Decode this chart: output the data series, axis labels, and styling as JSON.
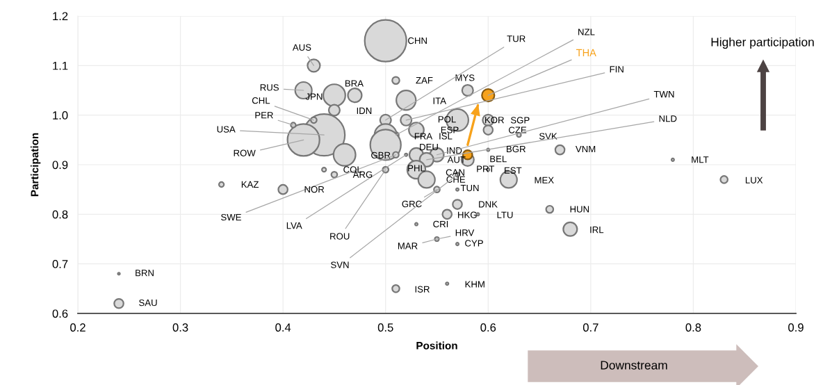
{
  "chart_data": {
    "type": "bubble",
    "xlabel": "Position",
    "ylabel": "Participation",
    "xlim": [
      0.2,
      0.9
    ],
    "xticks": [
      0.2,
      0.3,
      0.4,
      0.5,
      0.6,
      0.7,
      0.8,
      0.9
    ],
    "ylim": [
      0.6,
      1.2
    ],
    "yticks": [
      0.6,
      0.7,
      0.8,
      0.9,
      {
        "value": 1.0,
        "label": "1.0"
      },
      1.1,
      1.2
    ],
    "grid": true,
    "series": [
      {
        "x": [
          0.5,
          0.43,
          0.42,
          0.45,
          0.47,
          0.45,
          0.51,
          0.52,
          0.58,
          0.6,
          0.5,
          0.51,
          0.57,
          0.52,
          0.6,
          0.6,
          0.63,
          0.53,
          0.44,
          0.42,
          0.43,
          0.41,
          0.5,
          0.5,
          0.51,
          0.52,
          0.53,
          0.55,
          0.54,
          0.58,
          0.53,
          0.54,
          0.57,
          0.6,
          0.62,
          0.6,
          0.5,
          0.46,
          0.44,
          0.45,
          0.67,
          0.78,
          0.83,
          0.34,
          0.4,
          0.57,
          0.55,
          0.57,
          0.56,
          0.59,
          0.66,
          0.68,
          0.53,
          0.55,
          0.57,
          0.24,
          0.24,
          0.51,
          0.56
        ],
        "values": [
          1.15,
          1.1,
          1.05,
          1.04,
          1.04,
          1.01,
          1.07,
          1.03,
          1.05,
          1.04,
          0.99,
          0.96,
          0.99,
          0.99,
          0.99,
          0.97,
          0.96,
          0.97,
          0.96,
          0.95,
          0.99,
          0.98,
          0.96,
          0.94,
          0.92,
          0.92,
          0.92,
          0.92,
          0.91,
          0.91,
          0.89,
          0.87,
          0.88,
          0.89,
          0.87,
          0.93,
          0.89,
          0.92,
          0.89,
          0.88,
          0.93,
          0.91,
          0.87,
          0.86,
          0.85,
          0.85,
          0.85,
          0.82,
          0.8,
          0.8,
          0.81,
          0.77,
          0.78,
          0.75,
          0.74,
          0.68,
          0.62,
          0.65,
          0.66
        ],
        "sizes": [
          1,
          0.09,
          0.16,
          0.28,
          0.11,
          0.07,
          0.03,
          0.22,
          0.07,
          0.09,
          0.07,
          0.02,
          0.28,
          0.07,
          0.07,
          0.05,
          0.01,
          0.13,
          1,
          0.59,
          0.02,
          0.014,
          0.28,
          0.54,
          0.02,
          0.004,
          0.11,
          0.11,
          0.11,
          0.09,
          0.19,
          0.16,
          0.01,
          0.004,
          0.16,
          0.004,
          0.02,
          0.28,
          0.01,
          0.02,
          0.05,
          0.004,
          0.03,
          0.014,
          0.05,
          0.004,
          0.02,
          0.05,
          0.05,
          0.004,
          0.03,
          0.11,
          0.004,
          0.01,
          0.004,
          0.0025,
          0.05,
          0.03,
          0.004
        ],
        "colors": [
          "#d9d9d9",
          "#d9d9d9",
          "#d9d9d9",
          "#d9d9d9",
          "#d9d9d9",
          "#d9d9d9",
          "#d9d9d9",
          "#d9d9d9",
          "#d9d9d9",
          "#f7a21b",
          "#d9d9d9",
          "#d9d9d9",
          "#d9d9d9",
          "#d9d9d9",
          "#d9d9d9",
          "#d9d9d9",
          "#d9d9d9",
          "#d9d9d9",
          "#d9d9d9",
          "#d9d9d9",
          "#d9d9d9",
          "#d9d9d9",
          "#d9d9d9",
          "#d9d9d9",
          "#d9d9d9",
          "#d9d9d9",
          "#d9d9d9",
          "#d9d9d9",
          "#d9d9d9",
          "#d9d9d9",
          "#d9d9d9",
          "#d9d9d9",
          "#d9d9d9",
          "#d9d9d9",
          "#d9d9d9",
          "#d9d9d9",
          "#d9d9d9",
          "#d9d9d9",
          "#d9d9d9",
          "#d9d9d9",
          "#d9d9d9",
          "#d9d9d9",
          "#d9d9d9",
          "#d9d9d9",
          "#d9d9d9",
          "#d9d9d9",
          "#d9d9d9",
          "#d9d9d9",
          "#d9d9d9",
          "#d9d9d9",
          "#d9d9d9",
          "#d9d9d9",
          "#d9d9d9",
          "#d9d9d9",
          "#d9d9d9",
          "#d9d9d9",
          "#d9d9d9",
          "#d9d9d9",
          "#d9d9d9"
        ]
      },
      {
        "x": [
          0.58
        ],
        "values": [
          0.92
        ],
        "sizes": [
          0.05
        ],
        "colors": [
          "#f7a21b"
        ]
      },
      {
        "type": "line",
        "x": [
          0.58,
          0.59
        ],
        "values": [
          0.94,
          1.02
        ],
        "color": "#f7a21b"
      }
    ],
    "annotations": [
      {
        "text": "CHN",
        "x": 0.5,
        "y": 1.15
      },
      {
        "text": "AUS",
        "x": 0.43,
        "y": 1.1
      },
      {
        "text": "RUS",
        "x": 0.42,
        "y": 1.05
      },
      {
        "text": "JPN",
        "x": 0.45,
        "y": 1.04
      },
      {
        "text": "BRA",
        "x": 0.47,
        "y": 1.04
      },
      {
        "text": "IDN",
        "x": 0.45,
        "y": 1.01
      },
      {
        "text": "ZAF",
        "x": 0.51,
        "y": 1.07
      },
      {
        "text": "ITA",
        "x": 0.52,
        "y": 1.03
      },
      {
        "text": "MYS",
        "x": 0.58,
        "y": 1.05
      },
      {
        "text": "THA",
        "x": 0.6,
        "y": 1.04
      },
      {
        "text": "TUR",
        "x": 0.5,
        "y": 0.99
      },
      {
        "text": "NZL",
        "x": 0.51,
        "y": 0.96
      },
      {
        "text": "POL",
        "x": 0.57,
        "y": 0.99
      },
      {
        "text": "FIN",
        "x": 0.52,
        "y": 0.99
      },
      {
        "text": "KOR",
        "x": 0.6,
        "y": 0.99
      },
      {
        "text": "SGP",
        "x": 0.6,
        "y": 0.97
      },
      {
        "text": "CZE",
        "x": 0.63,
        "y": 0.96
      },
      {
        "text": "SVK",
        "x": 0.63,
        "y": 0.96
      },
      {
        "text": "FRA",
        "x": 0.53,
        "y": 0.97
      },
      {
        "text": "ESP",
        "x": 0.53,
        "y": 0.97
      },
      {
        "text": "ISL",
        "x": 0.53,
        "y": 0.97
      },
      {
        "text": "USA",
        "x": 0.44,
        "y": 0.96
      },
      {
        "text": "ROW",
        "x": 0.42,
        "y": 0.95
      },
      {
        "text": "CHL",
        "x": 0.43,
        "y": 0.99
      },
      {
        "text": "PER",
        "x": 0.41,
        "y": 0.98
      },
      {
        "text": "GBR",
        "x": 0.5,
        "y": 0.94
      },
      {
        "text": "SWE",
        "x": 0.51,
        "y": 0.92
      },
      {
        "text": "LVA",
        "x": 0.52,
        "y": 0.92
      },
      {
        "text": "DEU",
        "x": 0.53,
        "y": 0.92
      },
      {
        "text": "IND",
        "x": 0.55,
        "y": 0.92
      },
      {
        "text": "TWN",
        "x": 0.55,
        "y": 0.92
      },
      {
        "text": "NLD",
        "x": 0.54,
        "y": 0.91
      },
      {
        "text": "AUT",
        "x": 0.58,
        "y": 0.91
      },
      {
        "text": "BEL",
        "x": 0.58,
        "y": 0.91
      },
      {
        "text": "PHL",
        "x": 0.53,
        "y": 0.89
      },
      {
        "text": "CHE",
        "x": 0.54,
        "y": 0.87
      },
      {
        "text": "CAN",
        "x": 0.57,
        "y": 0.88
      },
      {
        "text": "SVN",
        "x": 0.57,
        "y": 0.88
      },
      {
        "text": "PRT",
        "x": 0.6,
        "y": 0.89
      },
      {
        "text": "EST",
        "x": 0.62,
        "y": 0.87
      },
      {
        "text": "MEX",
        "x": 0.62,
        "y": 0.87
      },
      {
        "text": "BGR",
        "x": 0.6,
        "y": 0.93
      },
      {
        "text": "ROU",
        "x": 0.5,
        "y": 0.89
      },
      {
        "text": "COL",
        "x": 0.44,
        "y": 0.89
      },
      {
        "text": "ARG",
        "x": 0.45,
        "y": 0.88
      },
      {
        "text": "VNM",
        "x": 0.67,
        "y": 0.93
      },
      {
        "text": "MLT",
        "x": 0.78,
        "y": 0.91
      },
      {
        "text": "LUX",
        "x": 0.83,
        "y": 0.87
      },
      {
        "text": "KAZ",
        "x": 0.34,
        "y": 0.86
      },
      {
        "text": "NOR",
        "x": 0.4,
        "y": 0.85
      },
      {
        "text": "TUN",
        "x": 0.57,
        "y": 0.85
      },
      {
        "text": "GRC",
        "x": 0.55,
        "y": 0.85
      },
      {
        "text": "DNK",
        "x": 0.57,
        "y": 0.82
      },
      {
        "text": "HKG",
        "x": 0.56,
        "y": 0.8
      },
      {
        "text": "LTU",
        "x": 0.59,
        "y": 0.8
      },
      {
        "text": "HUN",
        "x": 0.66,
        "y": 0.81
      },
      {
        "text": "IRL",
        "x": 0.68,
        "y": 0.77
      },
      {
        "text": "CRI",
        "x": 0.53,
        "y": 0.78
      },
      {
        "text": "HRV",
        "x": 0.55,
        "y": 0.75
      },
      {
        "text": "MAR",
        "x": 0.55,
        "y": 0.75
      },
      {
        "text": "CYP",
        "x": 0.57,
        "y": 0.74
      },
      {
        "text": "BRN",
        "x": 0.24,
        "y": 0.68
      },
      {
        "text": "SAU",
        "x": 0.24,
        "y": 0.62
      },
      {
        "text": "ISR",
        "x": 0.51,
        "y": 0.65
      },
      {
        "text": "KHM",
        "x": 0.56,
        "y": 0.66
      },
      "Higher participation",
      "Downstream"
    ]
  }
}
